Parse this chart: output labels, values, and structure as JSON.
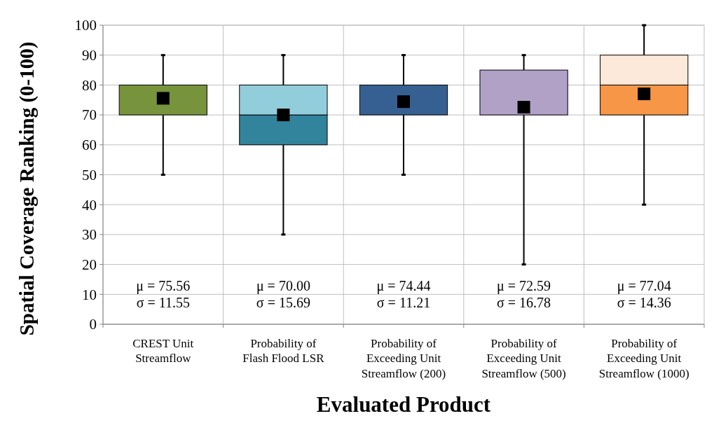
{
  "chart_data": {
    "type": "box",
    "xlabel": "Evaluated Product",
    "ylabel": "Spatial Coverage Ranking (0-100)",
    "categories": [
      "CREST Unit Streamflow",
      "Probability of Flash Flood LSR",
      "Probability of Exceeding Unit Streamflow (200)",
      "Probability of Exceeding Unit Streamflow (500)",
      "Probability of Exceeding Unit Streamflow (1000)"
    ],
    "boxes": [
      {
        "low": 50,
        "q1": 70,
        "median": 80,
        "q3": 80,
        "high": 90,
        "mean": 75.56
      },
      {
        "low": 30,
        "q1": 60,
        "median": 70,
        "q3": 80,
        "high": 90,
        "mean": 70.0
      },
      {
        "low": 50,
        "q1": 70,
        "median": 80,
        "q3": 80,
        "high": 90,
        "mean": 74.44
      },
      {
        "low": 20,
        "q1": 70,
        "median": 70,
        "q3": 85,
        "high": 90,
        "mean": 72.59
      },
      {
        "low": 40,
        "q1": 70,
        "median": 80,
        "q3": 90,
        "high": 100,
        "mean": 77.04
      }
    ],
    "colors": [
      [
        "#77933c",
        "#77933c"
      ],
      [
        "#31849b",
        "#92cddc"
      ],
      [
        "#366092",
        "#366092"
      ],
      [
        "#b2a1c7",
        "#b2a1c7"
      ],
      [
        "#f79646",
        "#fde9d9"
      ]
    ],
    "marker": "square",
    "ylim": [
      0,
      100
    ],
    "yticks": [
      0,
      10,
      20,
      30,
      40,
      50,
      60,
      70,
      80,
      90,
      100
    ],
    "grid": true,
    "annotations": [
      "μ = 75.56\nσ = 11.55",
      "μ = 70.00\nσ = 15.69",
      "μ = 74.44\nσ = 11.21",
      "μ = 72.59\nσ = 16.78",
      "μ = 77.04\nσ = 14.36"
    ]
  }
}
